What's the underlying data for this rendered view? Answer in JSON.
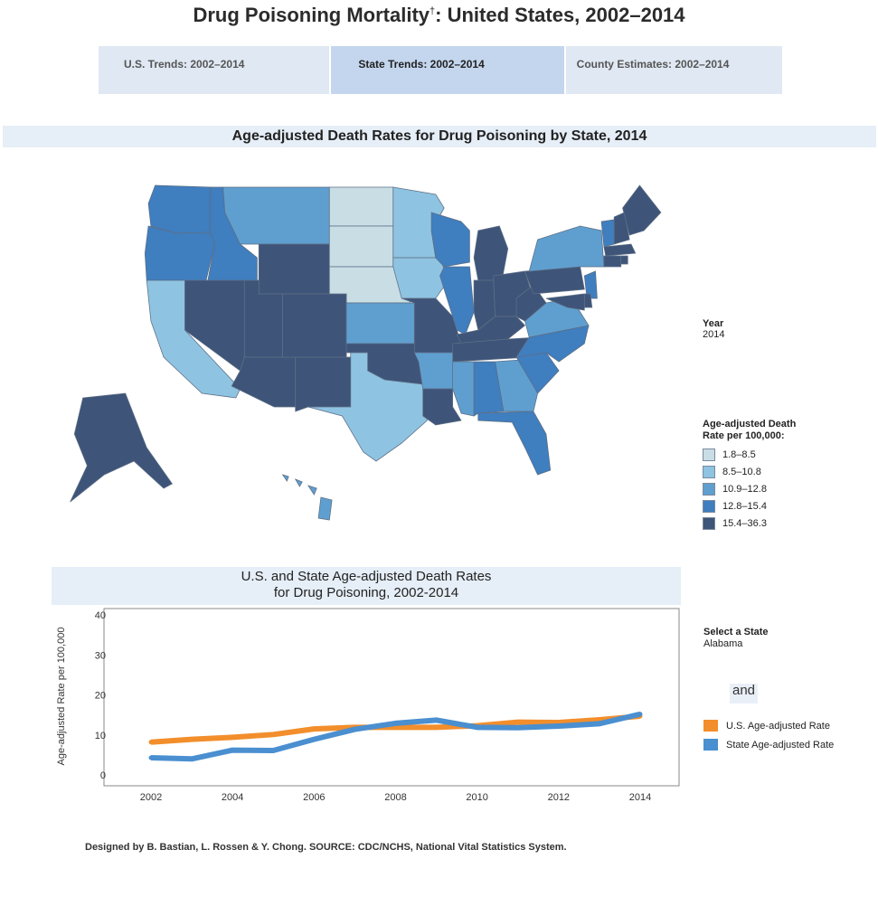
{
  "page": {
    "title": "Drug Poisoning Mortality",
    "title_mark": "†",
    "title_rest": ": United States, 2002–2014",
    "tabs": [
      "U.S. Trends: 2002–2014",
      "State Trends: 2002–2014",
      "County Estimates: 2002–2014"
    ],
    "active_tab": 1,
    "map_section_title": "Age-adjusted Death Rates for Drug Poisoning by State, 2014",
    "footer": "Designed by B. Bastian, L. Rossen & Y. Chong. SOURCE: CDC/NCHS, National Vital Statistics System."
  },
  "year_filter": {
    "label": "Year",
    "value": "2014"
  },
  "map_legend": {
    "title": "Age-adjusted Death Rate per 100,000:",
    "bins": [
      {
        "label": "1.8–8.5",
        "color": "#c9dde5"
      },
      {
        "label": "8.5–10.8",
        "color": "#8fc3e2"
      },
      {
        "label": "10.9–12.8",
        "color": "#5f9fd0"
      },
      {
        "label": "12.8–15.4",
        "color": "#3f7ebf"
      },
      {
        "label": "15.4–36.3",
        "color": "#3e5479"
      }
    ]
  },
  "state_select": {
    "label": "Select a State",
    "value": "Alabama"
  },
  "and_chip": "and",
  "chart_data": [
    {
      "type": "heatmap",
      "subtype": "choropleth",
      "title": "Age-adjusted Death Rates for Drug Poisoning by State, 2014",
      "legend_title": "Age-adjusted Death Rate per 100,000:",
      "state_bins": {
        "1.8–8.5": [
          "North Dakota",
          "South Dakota",
          "Nebraska"
        ],
        "8.5–10.8": [
          "Minnesota",
          "Iowa",
          "California",
          "Texas"
        ],
        "10.9–12.8": [
          "Montana",
          "Kansas",
          "Arkansas",
          "Mississippi",
          "Georgia",
          "Virginia",
          "New York",
          "Hawaii"
        ],
        "12.8–15.4": [
          "Washington",
          "Oregon",
          "Idaho",
          "Wisconsin",
          "Illinois",
          "Alabama",
          "South Carolina",
          "North Carolina",
          "Florida",
          "New Jersey",
          "Vermont"
        ],
        "15.4–36.3": [
          "Nevada",
          "Utah",
          "Arizona",
          "Wyoming",
          "Colorado",
          "New Mexico",
          "Oklahoma",
          "Missouri",
          "Louisiana",
          "Michigan",
          "Indiana",
          "Ohio",
          "Kentucky",
          "Tennessee",
          "West Virginia",
          "Pennsylvania",
          "Maryland",
          "Delaware",
          "Maine",
          "New Hampshire",
          "Massachusetts",
          "Connecticut",
          "Rhode Island",
          "Alaska"
        ]
      }
    },
    {
      "type": "line",
      "title": "U.S. and State Age-adjusted Death Rates for Drug Poisoning, 2002-2014",
      "title_lines": [
        "U.S. and State Age-adjusted Death Rates",
        "for Drug Poisoning, 2002-2014"
      ],
      "xlabel": "",
      "ylabel": "Age-adjusted Rate per 100,000",
      "x": [
        2002,
        2003,
        2004,
        2005,
        2006,
        2007,
        2008,
        2009,
        2010,
        2011,
        2012,
        2013,
        2014
      ],
      "xticks": [
        2002,
        2004,
        2006,
        2008,
        2010,
        2012,
        2014
      ],
      "yticks": [
        0,
        10,
        20,
        30,
        40
      ],
      "ylim": [
        0,
        40
      ],
      "grid": false,
      "legend_position": "right",
      "series": [
        {
          "name": "U.S. Age-adjusted Rate",
          "color": "#f28e2b",
          "values": [
            8.2,
            8.9,
            9.4,
            10.1,
            11.5,
            11.9,
            11.9,
            11.9,
            12.3,
            13.2,
            13.1,
            13.8,
            14.7
          ]
        },
        {
          "name": "State Age-adjusted Rate",
          "color": "#4a8fd0",
          "values": [
            4.3,
            4.0,
            6.2,
            6.1,
            8.9,
            11.4,
            12.9,
            13.7,
            11.9,
            11.8,
            12.2,
            12.8,
            15.2
          ]
        }
      ]
    }
  ]
}
